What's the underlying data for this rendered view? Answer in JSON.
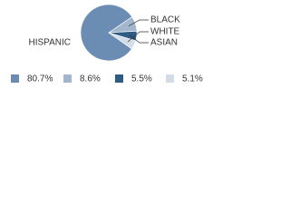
{
  "chart_data": {
    "type": "pie",
    "categories": [
      "HISPANIC",
      "BLACK",
      "ASIAN",
      "WHITE"
    ],
    "values": [
      80.7,
      8.6,
      5.5,
      5.1
    ],
    "value_labels": [
      "80.7%",
      "8.6%",
      "5.5%",
      "5.1%"
    ],
    "colors": [
      "#6b8db3",
      "#a2b6cd",
      "#2f5b85",
      "#d3dde8"
    ]
  }
}
